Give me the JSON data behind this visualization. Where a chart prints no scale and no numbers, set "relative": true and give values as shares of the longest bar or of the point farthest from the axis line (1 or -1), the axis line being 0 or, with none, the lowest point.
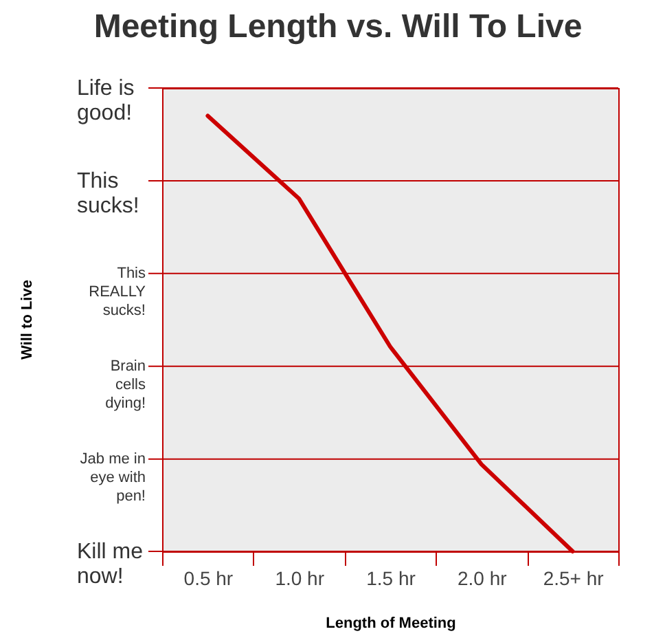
{
  "chart_data": {
    "type": "line",
    "title": "Meeting Length vs. Will To Live",
    "xlabel": "Length of Meeting",
    "categories": [
      "0.5 hr",
      "1.0 hr",
      "1.5 hr",
      "2.0 hr",
      "2.5+ hr"
    ],
    "series": [
      {
        "color": "#cc0000",
        "values": [
          1,
          0.81,
          0.47,
          0.2,
          0
        ]
      }
    ],
    "relative": true,
    "ref_lines": [
      {
        "axis": "y",
        "value": 1.064,
        "label": "Life is good!",
        "color": "#c00000"
      },
      {
        "axis": "y",
        "value": 0.851,
        "label": "This sucks!",
        "color": "#c00000"
      },
      {
        "axis": "y",
        "value": 0.638,
        "label": "This REALLY sucks!",
        "color": "#c00000"
      },
      {
        "axis": "y",
        "value": 0.425,
        "label": "Brain cells dying!",
        "color": "#c00000"
      },
      {
        "axis": "y",
        "value": 0.212,
        "label": "Jab me in eye with pen!",
        "color": "#c00000"
      },
      {
        "axis": "y",
        "value": 0,
        "label": "Kill me now!",
        "color": "#c00000"
      }
    ],
    "annotations": [
      "Will to Live"
    ]
  }
}
